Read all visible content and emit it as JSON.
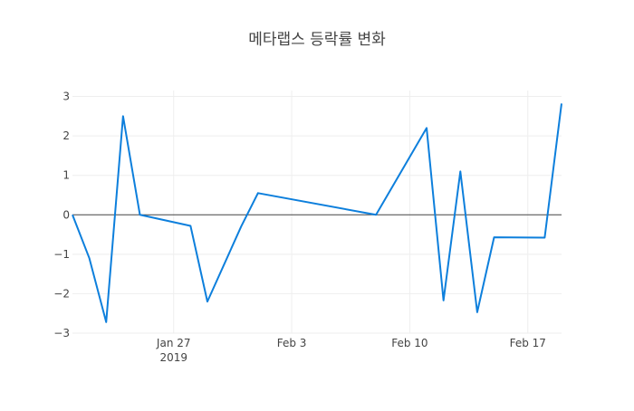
{
  "chart_data": {
    "type": "line",
    "title": "메타랩스 등락률 변화",
    "xlabel": "",
    "ylabel": "",
    "x": [
      "2019-01-21",
      "2019-01-22",
      "2019-01-23",
      "2019-01-24",
      "2019-01-25",
      "2019-01-28",
      "2019-01-29",
      "2019-01-31",
      "2019-02-01",
      "2019-02-08",
      "2019-02-11",
      "2019-02-12",
      "2019-02-13",
      "2019-02-14",
      "2019-02-15",
      "2019-02-18",
      "2019-02-19"
    ],
    "series": [
      {
        "values": [
          0.0,
          -1.1,
          -2.72,
          2.5,
          0.0,
          -0.28,
          -2.2,
          -0.3,
          0.55,
          0.0,
          2.2,
          -2.17,
          1.1,
          -2.47,
          -0.57,
          -0.58,
          2.82
        ]
      }
    ],
    "xlim": [
      "2019-01-21",
      "2019-02-19"
    ],
    "ylim": [
      -3,
      3.15
    ],
    "x_ticks": [
      {
        "date": "2019-01-27",
        "label": "Jan 27"
      },
      {
        "date": "2019-02-03",
        "label": "Feb 3"
      },
      {
        "date": "2019-02-10",
        "label": "Feb 10"
      },
      {
        "date": "2019-02-17",
        "label": "Feb 17"
      }
    ],
    "x_year_label": "2019",
    "y_ticks": [
      -3,
      -2,
      -1,
      0,
      1,
      2,
      3
    ],
    "grid": true,
    "colors": {
      "line": "#0d7fdc",
      "grid": "#eeeeee",
      "zeroline": "#444444",
      "text": "#444444"
    }
  }
}
